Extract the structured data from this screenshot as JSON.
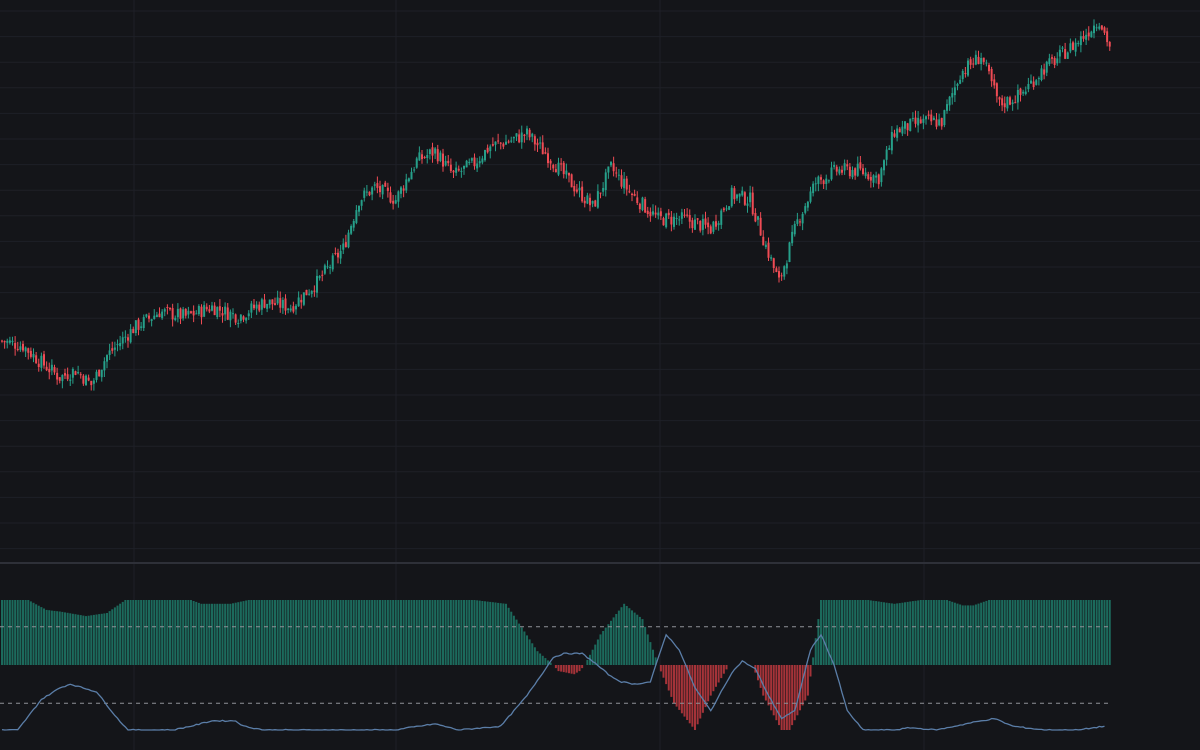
{
  "colors": {
    "background": "#141519",
    "grid": "#1e2027",
    "separator": "#2e3038",
    "up": "#26a08a",
    "down": "#ef4b54",
    "osc_bar_up": "#1c6a5c",
    "osc_bar_down": "#a53339",
    "osc_line": "#5b7ea8",
    "ref_line": "#8f9198"
  },
  "chart_data": [
    {
      "type": "candlestick",
      "title": "",
      "xlabel": "",
      "ylabel": "",
      "grid": true,
      "legend": "none",
      "ylim": [
        -20,
        210
      ],
      "keyframes": [
        [
          0,
          70
        ],
        [
          8,
          68
        ],
        [
          14,
          62
        ],
        [
          22,
          55
        ],
        [
          28,
          58
        ],
        [
          34,
          52
        ],
        [
          40,
          64
        ],
        [
          50,
          75
        ],
        [
          60,
          82
        ],
        [
          70,
          80
        ],
        [
          80,
          84
        ],
        [
          90,
          80
        ],
        [
          100,
          86
        ],
        [
          110,
          84
        ],
        [
          120,
          94
        ],
        [
          130,
          108
        ],
        [
          136,
          128
        ],
        [
          142,
          133
        ],
        [
          150,
          128
        ],
        [
          158,
          144
        ],
        [
          165,
          148
        ],
        [
          172,
          138
        ],
        [
          180,
          143
        ],
        [
          186,
          150
        ],
        [
          193,
          152
        ],
        [
          200,
          155
        ],
        [
          208,
          146
        ],
        [
          215,
          137
        ],
        [
          225,
          125
        ],
        [
          232,
          141
        ],
        [
          240,
          130
        ],
        [
          250,
          120
        ],
        [
          260,
          120
        ],
        [
          270,
          116
        ],
        [
          278,
          130
        ],
        [
          285,
          128
        ],
        [
          290,
          112
        ],
        [
          296,
          94
        ],
        [
          303,
          119
        ],
        [
          310,
          135
        ],
        [
          318,
          140
        ],
        [
          326,
          140
        ],
        [
          334,
          137
        ],
        [
          340,
          156
        ],
        [
          350,
          160
        ],
        [
          358,
          160
        ],
        [
          365,
          180
        ],
        [
          373,
          187
        ],
        [
          380,
          167
        ],
        [
          388,
          171
        ],
        [
          396,
          181
        ],
        [
          402,
          186
        ],
        [
          410,
          193
        ],
        [
          418,
          202
        ],
        [
          422,
          191
        ]
      ]
    },
    {
      "type": "bar",
      "title": "",
      "series": [
        {
          "name": "",
          "values_from": "histogram_keyframes"
        }
      ],
      "histogram_keyframes": [
        [
          0,
          85
        ],
        [
          10,
          85
        ],
        [
          17,
          72
        ],
        [
          22,
          70
        ],
        [
          32,
          64
        ],
        [
          40,
          68
        ],
        [
          47,
          85
        ],
        [
          72,
          85
        ],
        [
          76,
          80
        ],
        [
          87,
          80
        ],
        [
          94,
          85
        ],
        [
          157,
          85
        ],
        [
          180,
          85
        ],
        [
          192,
          80
        ],
        [
          204,
          18
        ],
        [
          210,
          0
        ],
        [
          212,
          -8
        ],
        [
          218,
          -12
        ],
        [
          220,
          -8
        ],
        [
          222,
          0
        ],
        [
          228,
          40
        ],
        [
          237,
          80
        ],
        [
          244,
          60
        ],
        [
          250,
          0
        ],
        [
          256,
          -50
        ],
        [
          264,
          -85
        ],
        [
          270,
          -40
        ],
        [
          277,
          0
        ],
        [
          286,
          0
        ],
        [
          290,
          -40
        ],
        [
          297,
          -85
        ],
        [
          300,
          -85
        ],
        [
          307,
          -40
        ],
        [
          312,
          85
        ],
        [
          330,
          85
        ],
        [
          340,
          80
        ],
        [
          350,
          85
        ],
        [
          360,
          85
        ],
        [
          366,
          78
        ],
        [
          370,
          78
        ],
        [
          376,
          85
        ],
        [
          422,
          85
        ]
      ],
      "line_keyframes": [
        [
          0,
          -85
        ],
        [
          6,
          -85
        ],
        [
          15,
          -45
        ],
        [
          22,
          -30
        ],
        [
          26,
          -25
        ],
        [
          31,
          -30
        ],
        [
          36,
          -35
        ],
        [
          44,
          -70
        ],
        [
          48,
          -85
        ],
        [
          65,
          -85
        ],
        [
          72,
          -80
        ],
        [
          80,
          -73
        ],
        [
          89,
          -73
        ],
        [
          92,
          -80
        ],
        [
          100,
          -85
        ],
        [
          150,
          -85
        ],
        [
          155,
          -82
        ],
        [
          165,
          -77
        ],
        [
          174,
          -85
        ],
        [
          190,
          -80
        ],
        [
          200,
          -40
        ],
        [
          210,
          10
        ],
        [
          214,
          15
        ],
        [
          221,
          15
        ],
        [
          225,
          5
        ],
        [
          232,
          -15
        ],
        [
          236,
          -22
        ],
        [
          241,
          -25
        ],
        [
          247,
          -22
        ],
        [
          253,
          40
        ],
        [
          258,
          20
        ],
        [
          264,
          -30
        ],
        [
          270,
          -60
        ],
        [
          278,
          -10
        ],
        [
          282,
          5
        ],
        [
          287,
          -5
        ],
        [
          292,
          -40
        ],
        [
          297,
          -70
        ],
        [
          302,
          -60
        ],
        [
          308,
          20
        ],
        [
          312,
          40
        ],
        [
          317,
          0
        ],
        [
          322,
          -60
        ],
        [
          328,
          -85
        ],
        [
          340,
          -85
        ],
        [
          346,
          -82
        ],
        [
          356,
          -85
        ],
        [
          370,
          -75
        ],
        [
          378,
          -70
        ],
        [
          385,
          -80
        ],
        [
          397,
          -85
        ],
        [
          410,
          -85
        ],
        [
          420,
          -80
        ]
      ],
      "reference_lines": [
        50,
        -50
      ],
      "ylim": [
        -85,
        85
      ]
    }
  ]
}
